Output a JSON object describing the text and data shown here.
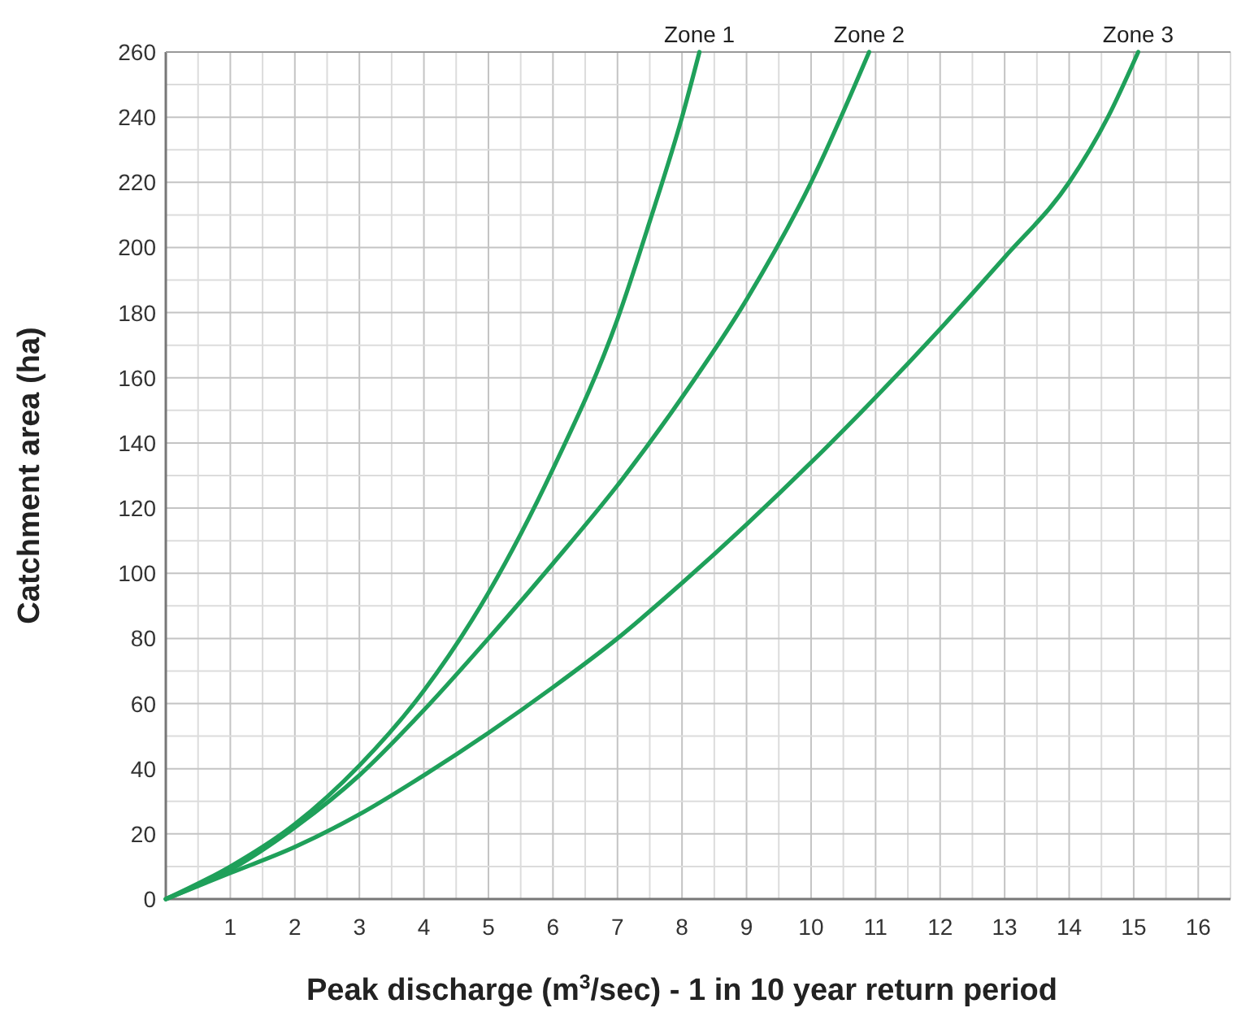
{
  "chart_data": {
    "type": "line",
    "xlabel": "Peak discharge (m$^{3}$/sec) - 1 in 10 year return period",
    "ylabel": "Catchment area (ha)",
    "xlim": [
      0,
      16.5
    ],
    "ylim": [
      0,
      260
    ],
    "xticks": [
      1,
      2,
      3,
      4,
      5,
      6,
      7,
      8,
      9,
      10,
      11,
      12,
      13,
      14,
      15,
      16
    ],
    "yticks": [
      0,
      20,
      40,
      60,
      80,
      100,
      120,
      140,
      160,
      180,
      200,
      220,
      240,
      260
    ],
    "grid": true,
    "marker": "none",
    "line_style": "solid",
    "series": [
      {
        "name": "Zone 1",
        "color": "#1fa05a",
        "x": [
          0,
          1,
          2,
          3,
          4,
          5,
          6,
          7,
          7.5,
          8,
          8.27
        ],
        "values": [
          0,
          10,
          23,
          41,
          64,
          94,
          132,
          178,
          208,
          240,
          260
        ]
      },
      {
        "name": "Zone 2",
        "color": "#1fa05a",
        "x": [
          0,
          1,
          2,
          3,
          4,
          5,
          6,
          7,
          8,
          9,
          10,
          10.9
        ],
        "values": [
          0,
          9,
          22,
          38,
          58,
          80,
          103,
          127,
          154,
          184,
          220,
          260
        ]
      },
      {
        "name": "Zone 3",
        "color": "#1fa05a",
        "x": [
          0,
          1,
          2,
          3,
          4,
          5,
          6,
          7,
          8,
          9,
          10,
          11,
          12,
          13,
          14,
          14.6,
          15.07
        ],
        "values": [
          0,
          8,
          16,
          26,
          38,
          51,
          65,
          80,
          97,
          115,
          134,
          154,
          175,
          197,
          220,
          240,
          260
        ]
      }
    ]
  }
}
